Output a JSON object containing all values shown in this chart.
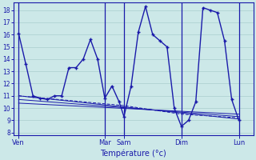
{
  "xlabel": "Température (°c)",
  "bg_color": "#cce8e8",
  "grid_color": "#aacece",
  "line_color": "#1a1aaa",
  "ylim": [
    7.8,
    18.6
  ],
  "yticks": [
    8,
    9,
    10,
    11,
    12,
    13,
    14,
    15,
    16,
    17,
    18
  ],
  "xlim": [
    0,
    100
  ],
  "day_labels": [
    "Ven",
    "Mar",
    "Sam",
    "Dim",
    "Lun"
  ],
  "day_positions": [
    2,
    38,
    46,
    70,
    94
  ],
  "vline_positions": [
    2,
    38,
    46,
    70,
    94
  ],
  "line1_x": [
    2,
    5,
    8,
    11,
    14,
    17,
    20,
    23,
    26,
    29,
    32,
    35,
    38,
    41,
    44,
    46,
    49,
    52,
    55,
    58,
    61,
    64,
    67,
    70,
    73,
    76,
    79,
    82,
    85,
    88,
    91,
    94
  ],
  "line1_y": [
    16.1,
    13.6,
    11.0,
    10.8,
    10.7,
    11.0,
    11.0,
    13.3,
    13.3,
    14.0,
    15.6,
    14.0,
    10.8,
    11.8,
    10.5,
    9.3,
    11.8,
    16.2,
    18.3,
    16.0,
    15.5,
    15.0,
    10.0,
    8.5,
    9.0,
    10.5,
    18.2,
    18.0,
    17.8,
    15.5,
    10.7,
    9.0
  ],
  "line2_x": [
    2,
    94
  ],
  "line2_y": [
    11.0,
    9.1
  ],
  "line3_x": [
    2,
    94
  ],
  "line3_y": [
    10.7,
    9.3
  ],
  "line4_x": [
    2,
    94
  ],
  "line4_y": [
    10.4,
    9.5
  ],
  "line5_x": [
    2,
    46,
    70,
    94
  ],
  "line5_y": [
    11.0,
    10.2,
    9.5,
    9.2
  ],
  "figsize": [
    3.2,
    2.0
  ],
  "dpi": 100
}
